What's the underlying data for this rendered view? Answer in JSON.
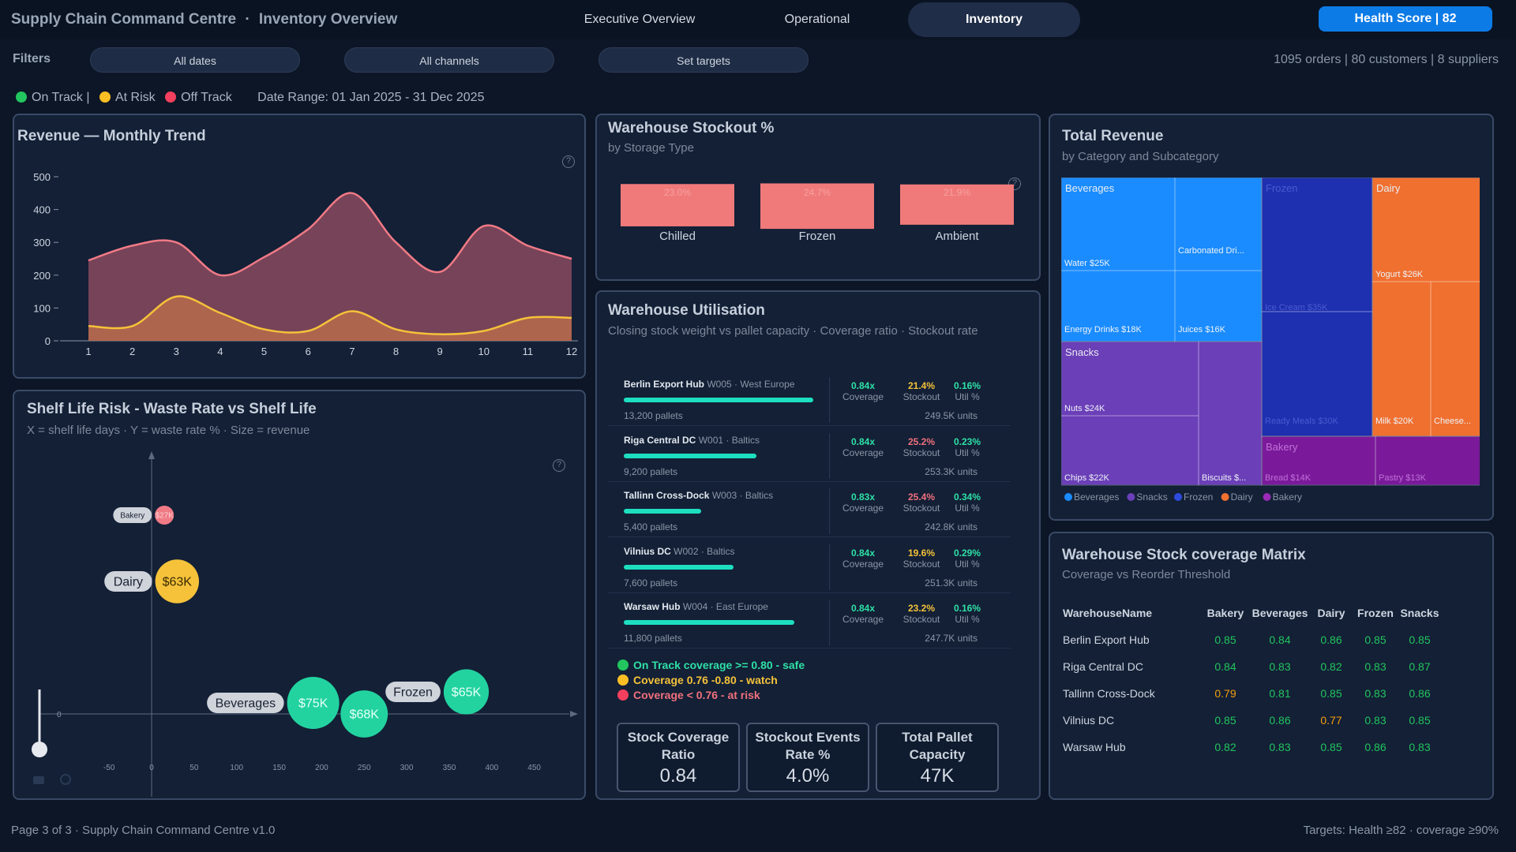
{
  "header": {
    "app_title": "Supply Chain Command Centre",
    "separator": "·",
    "page_title": "Inventory Overview",
    "tabs": [
      {
        "label": "Executive Overview"
      },
      {
        "label": "Operational"
      },
      {
        "label": "Inventory"
      }
    ],
    "health_button": "Health Score | 82"
  },
  "filters": {
    "label": "Filters",
    "buttons": [
      "All dates",
      "All channels",
      "Set targets"
    ],
    "counts": "1095 orders | 80 customers | 8 suppliers"
  },
  "status_legend": {
    "on_track": "On Track |",
    "at_risk": "At Risk",
    "off_track": "Off Track",
    "date_range": "Date Range: 01 Jan 2025 - 31 Dec 2025",
    "colors": {
      "on_track": "#22c55e",
      "at_risk": "#fbbf24",
      "off_track": "#f43f5e"
    }
  },
  "revenue_card": {
    "title": "Revenue — Monthly Trend",
    "chart_data": {
      "type": "area",
      "x": [
        1,
        2,
        3,
        4,
        5,
        6,
        7,
        8,
        9,
        10,
        11,
        12
      ],
      "ylim": [
        0,
        500
      ],
      "yticks": [
        0,
        100,
        200,
        300,
        400,
        500
      ],
      "series": [
        {
          "values": [
            245,
            290,
            300,
            200,
            255,
            340,
            450,
            300,
            210,
            350,
            290,
            250
          ],
          "color": "#f07a86"
        },
        {
          "values": [
            45,
            45,
            135,
            85,
            35,
            30,
            90,
            35,
            20,
            30,
            70,
            70
          ],
          "color": "#f5c23a"
        }
      ]
    }
  },
  "stockout_card": {
    "title": "Warehouse Stockout %",
    "subtitle": "by Storage Type",
    "chart_data": {
      "type": "bar",
      "categories": [
        "Chilled",
        "Frozen",
        "Ambient"
      ],
      "values": [
        23.0,
        24.7,
        21.9
      ],
      "value_labels": [
        "23.0%",
        "24.7%",
        "21.9%"
      ],
      "color": "#f07a7a"
    }
  },
  "utilisation_card": {
    "title": "Warehouse Utilisation",
    "subtitle": "Closing stock weight vs pallet capacity · Coverage ratio · Stockout rate",
    "coverage_label": "Coverage",
    "stockout_label": "Stockout",
    "util_label": "Util %",
    "rows": [
      {
        "name": "Berlin Export Hub",
        "code": "W005 · West Europe",
        "bar": 1.0,
        "pallets": "13,200 pallets",
        "coverage": "0.84x",
        "stockout": "21.4%",
        "util": "0.16%",
        "units": "249.5K units"
      },
      {
        "name": "Riga Central DC",
        "code": "W001 · Baltics",
        "bar": 0.7,
        "pallets": "9,200 pallets",
        "coverage": "0.84x",
        "stockout": "25.2%",
        "util": "0.23%",
        "units": "253.3K units"
      },
      {
        "name": "Tallinn Cross-Dock",
        "code": "W003 · Baltics",
        "bar": 0.41,
        "pallets": "5,400 pallets",
        "coverage": "0.83x",
        "stockout": "25.4%",
        "util": "0.34%",
        "units": "242.8K units"
      },
      {
        "name": "Vilnius DC",
        "code": "W002 · Baltics",
        "bar": 0.58,
        "pallets": "7,600 pallets",
        "coverage": "0.84x",
        "stockout": "19.6%",
        "util": "0.29%",
        "units": "251.3K units"
      },
      {
        "name": "Warsaw Hub",
        "code": "W004 · East Europe",
        "bar": 0.9,
        "pallets": "11,800 pallets",
        "coverage": "0.84x",
        "stockout": "23.2%",
        "util": "0.16%",
        "units": "247.7K units"
      }
    ],
    "legend": [
      {
        "text": "On Track coverage >= 0.80 - safe",
        "color": "#22c55e",
        "text_color": "#2fe0a6"
      },
      {
        "text": "Coverage 0.76 -0.80 - watch",
        "color": "#fbbf24",
        "text_color": "#f5c23a"
      },
      {
        "text": "Coverage < 0.76 - at risk",
        "color": "#f43f5e",
        "text_color": "#f0707c"
      }
    ],
    "kpis": [
      {
        "label1": "Stock Coverage",
        "label2": "Ratio",
        "value": "0.84"
      },
      {
        "label1": "Stockout Events",
        "label2": "Rate %",
        "value": "4.0%"
      },
      {
        "label1": "Total Pallet",
        "label2": "Capacity",
        "value": "47K"
      }
    ]
  },
  "shelf_card": {
    "title": "Shelf Life Risk - Waste Rate vs Shelf Life",
    "subtitle": "X = shelf life days · Y = waste rate % · Size = revenue",
    "chart_data": {
      "type": "scatter",
      "xticks": [
        -50,
        0,
        50,
        100,
        150,
        200,
        250,
        300,
        350,
        400,
        450
      ],
      "ytick_zero": "0",
      "points": [
        {
          "category": "Bakery",
          "label": "$27K",
          "x": 15,
          "y": 9,
          "color": "#f07a86"
        },
        {
          "category": "Dairy",
          "label": "$63K",
          "x": 30,
          "y": 6,
          "color": "#f5c23a"
        },
        {
          "category": "Beverages",
          "label": "$75K",
          "x": 190,
          "y": 0.5,
          "color": "#22d3a0"
        },
        {
          "category": "",
          "label": "$68K",
          "x": 250,
          "y": 0,
          "color": "#22d3a0"
        },
        {
          "category": "Frozen",
          "label": "$65K",
          "x": 370,
          "y": 1,
          "color": "#22d3a0"
        }
      ]
    }
  },
  "treemap_card": {
    "title": "Total Revenue",
    "subtitle": "by Category and Subcategory",
    "chart_data": {
      "type": "treemap",
      "groups": [
        {
          "name": "Beverages",
          "color": "#1a8cff",
          "items": [
            {
              "label": "Water $25K",
              "value": 25
            },
            {
              "label": "Carbonated Dri...",
              "value": 20
            },
            {
              "label": "Energy Drinks $18K",
              "value": 18
            },
            {
              "label": "Juices $16K",
              "value": 16
            }
          ]
        },
        {
          "name": "Snacks",
          "color": "#6b3fb8",
          "items": [
            {
              "label": "Nuts $24K",
              "value": 24
            },
            {
              "label": "Chips $22K",
              "value": 22
            },
            {
              "label": "Biscuits $...",
              "value": 12
            }
          ]
        },
        {
          "name": "Frozen",
          "color": "#1e2fb0",
          "items": [
            {
              "label": "Ice Cream $35K",
              "value": 35
            },
            {
              "label": "Ready Meals $30K",
              "value": 30
            }
          ]
        },
        {
          "name": "Dairy",
          "color": "#f07030",
          "items": [
            {
              "label": "Yogurt $26K",
              "value": 26
            },
            {
              "label": "Milk $20K",
              "value": 20
            },
            {
              "label": "Cheese...",
              "value": 18
            }
          ]
        },
        {
          "name": "Bakery",
          "color": "#7a1a9a",
          "items": [
            {
              "label": "Bread $14K",
              "value": 14
            },
            {
              "label": "Pastry $13K",
              "value": 13
            }
          ]
        }
      ],
      "legend": [
        "Beverages",
        "Snacks",
        "Frozen",
        "Dairy",
        "Bakery"
      ]
    }
  },
  "matrix_card": {
    "title": "Warehouse Stock coverage Matrix",
    "subtitle": "Coverage vs Reorder Threshold",
    "columns": [
      "WarehouseName",
      "Bakery",
      "Beverages",
      "Dairy",
      "Frozen",
      "Snacks"
    ],
    "rows": [
      {
        "name": "Berlin Export Hub",
        "values": [
          "0.85",
          "0.84",
          "0.86",
          "0.85",
          "0.85"
        ],
        "status": [
          "ok",
          "ok",
          "ok",
          "ok",
          "ok"
        ]
      },
      {
        "name": "Riga Central DC",
        "values": [
          "0.84",
          "0.83",
          "0.82",
          "0.83",
          "0.87"
        ],
        "status": [
          "ok",
          "ok",
          "ok",
          "ok",
          "ok"
        ]
      },
      {
        "name": "Tallinn Cross-Dock",
        "values": [
          "0.79",
          "0.81",
          "0.85",
          "0.83",
          "0.86"
        ],
        "status": [
          "warn",
          "ok",
          "ok",
          "ok",
          "ok"
        ]
      },
      {
        "name": "Vilnius DC",
        "values": [
          "0.85",
          "0.86",
          "0.77",
          "0.83",
          "0.85"
        ],
        "status": [
          "ok",
          "ok",
          "warn",
          "ok",
          "ok"
        ]
      },
      {
        "name": "Warsaw Hub",
        "values": [
          "0.82",
          "0.83",
          "0.85",
          "0.86",
          "0.83"
        ],
        "status": [
          "ok",
          "ok",
          "ok",
          "ok",
          "ok"
        ]
      }
    ],
    "colors": {
      "ok": "#22c55e",
      "warn": "#f59e0b"
    }
  },
  "footer": {
    "left": "Page 3 of 3 · Supply Chain Command Centre v1.0",
    "right": "Targets: Health ≥82 · coverage ≥90%"
  }
}
